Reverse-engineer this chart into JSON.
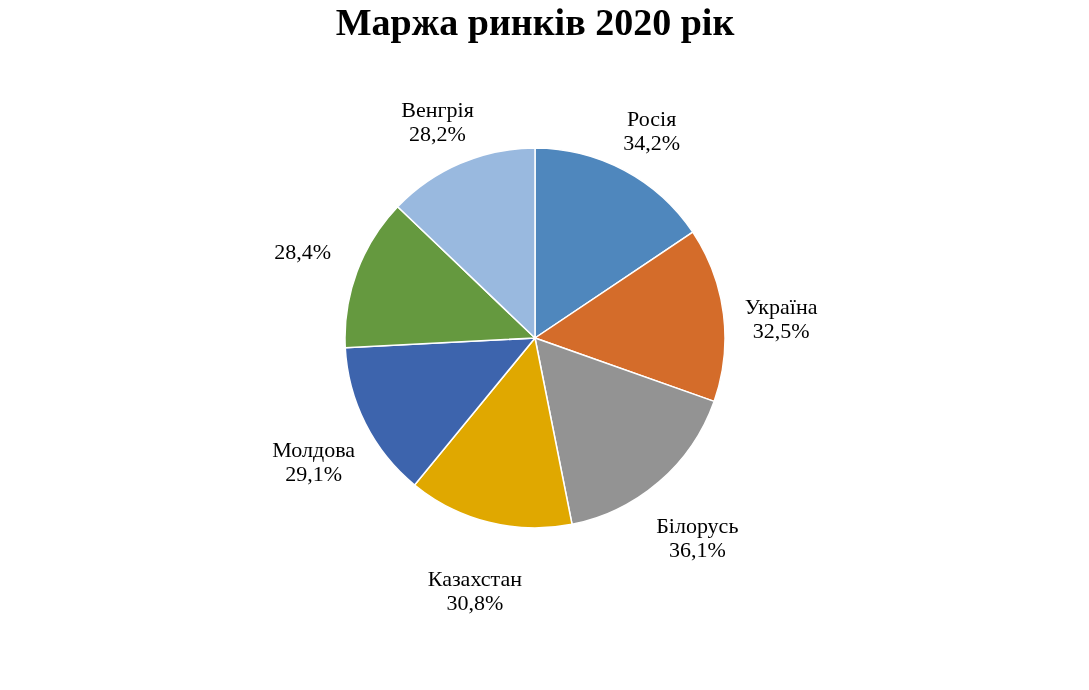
{
  "chart_data": {
    "type": "pie",
    "title": "Маржа ринків 2020 рік",
    "categories": [
      "Росія",
      "Україна",
      "Білорусь",
      "Казахстан",
      "Молдова",
      null,
      "Венгрія"
    ],
    "values": [
      34.2,
      32.5,
      36.1,
      30.8,
      29.1,
      28.4,
      28.2
    ],
    "value_labels": [
      "34,2%",
      "32,5%",
      "36,1%",
      "30,8%",
      "29,1%",
      "28,4%",
      "28,2%"
    ],
    "colors": [
      "#4f87bd",
      "#d46c2a",
      "#939393",
      "#e0a800",
      "#3d64ad",
      "#65993f",
      "#99b9df"
    ],
    "legend": false
  }
}
